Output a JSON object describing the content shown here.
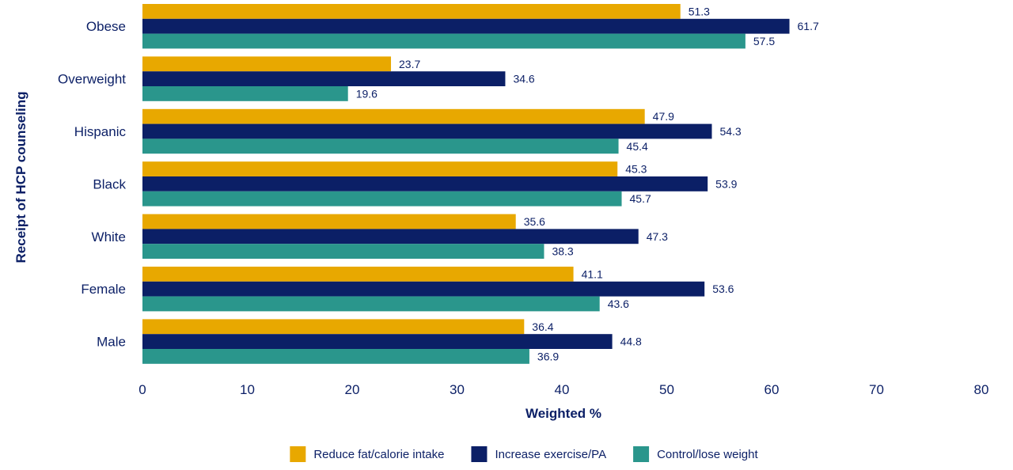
{
  "chart_data": {
    "type": "bar",
    "orientation": "horizontal",
    "categories": [
      "Obese",
      "Overweight",
      "Hispanic",
      "Black",
      "White",
      "Female",
      "Male"
    ],
    "series": [
      {
        "name": "Reduce fat/calorie intake",
        "color": "#E8A800",
        "values": [
          51.3,
          23.7,
          47.9,
          45.3,
          35.6,
          41.1,
          36.4
        ]
      },
      {
        "name": "Increase exercise/PA",
        "color": "#0B1F66",
        "values": [
          61.7,
          34.6,
          54.3,
          53.9,
          47.3,
          53.6,
          44.8
        ]
      },
      {
        "name": "Control/lose weight",
        "color": "#2A968C",
        "values": [
          57.5,
          19.6,
          45.4,
          45.7,
          38.3,
          43.6,
          36.9
        ]
      }
    ],
    "xlabel": "Weighted %",
    "ylabel": "Receipt of HCP counseling",
    "xlim": [
      0,
      80
    ],
    "xticks": [
      0,
      10,
      20,
      30,
      40,
      50,
      60,
      70,
      80
    ],
    "grid": false,
    "legend_position": "bottom"
  }
}
